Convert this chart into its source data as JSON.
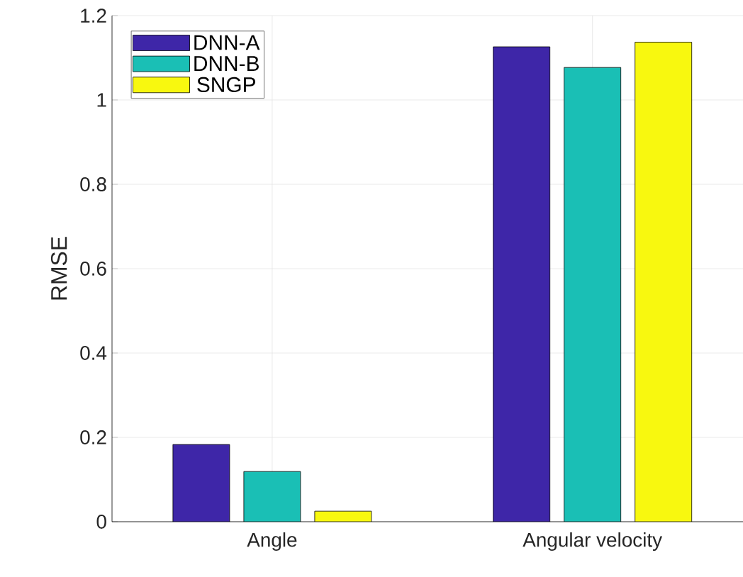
{
  "chart_data": {
    "type": "bar",
    "ylabel": "RMSE",
    "categories": [
      "Angle",
      "Angular velocity"
    ],
    "series": [
      {
        "name": "DNN-A",
        "color": "#3e26a8",
        "values": [
          0.183,
          1.126
        ]
      },
      {
        "name": "DNN-B",
        "color": "#1abfb5",
        "values": [
          0.119,
          1.077
        ]
      },
      {
        "name": "SNGP",
        "color": "#f8f80f",
        "values": [
          0.025,
          1.137
        ]
      }
    ],
    "ylim": [
      0,
      1.2
    ],
    "yticks": [
      0,
      0.2,
      0.4,
      0.6,
      0.8,
      1,
      1.2
    ],
    "grid": true,
    "legend": "top left"
  }
}
